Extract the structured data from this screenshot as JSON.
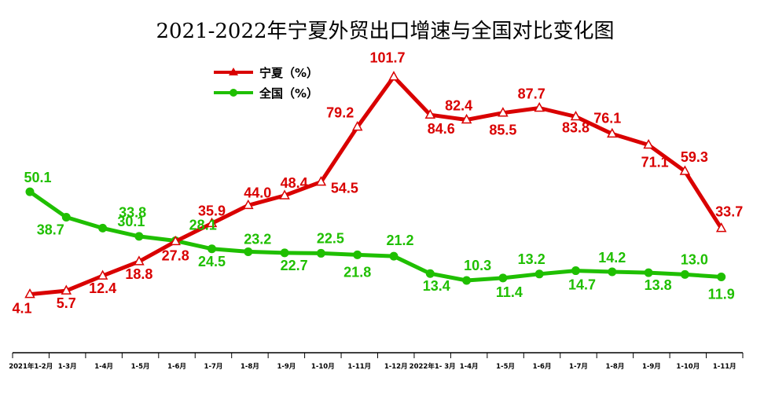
{
  "chart_data": {
    "type": "line",
    "title": "2021-2022年宁夏外贸出口增速与全国对比变化图",
    "categories": [
      "2021年1-2月",
      "1-3月",
      "1-4月",
      "1-5月",
      "1-6月",
      "1-7月",
      "1-8月",
      "1-9月",
      "1-10月",
      "1-11月",
      "1-12月",
      "2022年1- 3月",
      "1-4月",
      "1-5月",
      "1-6月",
      "1-7月",
      "1-8月",
      "1-9月",
      "1-10月",
      "1-11月"
    ],
    "series": [
      {
        "name": "宁夏（%）",
        "color": "#d90000",
        "marker": "triangle",
        "values": [
          4.1,
          5.7,
          12.4,
          18.8,
          27.8,
          35.9,
          44.0,
          48.4,
          54.5,
          79.2,
          101.7,
          84.6,
          82.4,
          85.5,
          87.7,
          83.8,
          76.1,
          71.1,
          59.3,
          33.7
        ],
        "labels": [
          "4.1",
          "5.7",
          "12.4",
          "18.8",
          "27.8",
          "35.9",
          "44.0",
          "48.4",
          "54.5",
          "79.2",
          "101.7",
          "84.6",
          "82.4",
          "85.5",
          "87.7",
          "83.8",
          "76.1",
          "71.1",
          "59.3",
          "33.7"
        ]
      },
      {
        "name": "全国（%）",
        "color": "#1fbf00",
        "marker": "circle",
        "values": [
          50.1,
          38.7,
          33.8,
          30.1,
          28.1,
          24.5,
          23.2,
          22.7,
          22.5,
          21.8,
          21.2,
          13.4,
          10.3,
          11.4,
          13.2,
          14.7,
          14.2,
          13.8,
          13.0,
          11.9
        ],
        "labels": [
          "50.1",
          "38.7",
          "33.8",
          "30.1",
          "28.1",
          "24.5",
          "23.2",
          "22.7",
          "22.5",
          "21.8",
          "21.2",
          "13.4",
          "10.3",
          "11.4",
          "13.2",
          "14.7",
          "14.2",
          "13.8",
          "13.0",
          "11.9"
        ]
      }
    ],
    "ylim": [
      -20,
      115
    ],
    "legend": "top-center",
    "grid": false
  }
}
